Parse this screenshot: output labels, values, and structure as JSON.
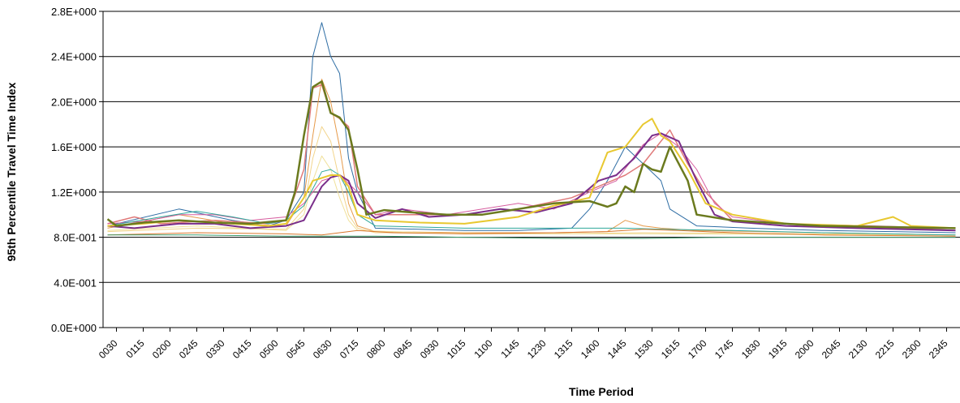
{
  "chart_data": {
    "type": "line",
    "xlabel": "Time Period",
    "ylabel": "95th Percentile Travel Time Index",
    "ylim": [
      0,
      2.8
    ],
    "yticks": [
      0,
      0.4,
      0.8,
      1.2,
      1.6,
      2.0,
      2.4,
      2.8
    ],
    "ytick_labels": [
      "0.0E+000",
      "4.0E-001",
      "8.0E-001",
      "1.2E+000",
      "1.6E+000",
      "2.0E+000",
      "2.4E+000",
      "2.8E+000"
    ],
    "xtick_labels": [
      "0030",
      "0115",
      "0200",
      "0245",
      "0330",
      "0415",
      "0500",
      "0545",
      "0630",
      "0715",
      "0800",
      "0845",
      "0930",
      "1015",
      "1100",
      "1145",
      "1230",
      "1315",
      "1400",
      "1445",
      "1530",
      "1615",
      "1700",
      "1745",
      "1830",
      "1915",
      "2000",
      "2045",
      "2130",
      "2215",
      "2300",
      "2345"
    ],
    "grid": "horizontal",
    "legend": "none",
    "series": [
      {
        "color": "#2e6da4",
        "width": 1,
        "points": [
          [
            0,
            0.9
          ],
          [
            8,
            1.05
          ],
          [
            14,
            0.95
          ],
          [
            18,
            0.9
          ],
          [
            20,
            0.95
          ],
          [
            22,
            1.2
          ],
          [
            23,
            2.4
          ],
          [
            24,
            2.7
          ],
          [
            25,
            2.4
          ],
          [
            26,
            2.25
          ],
          [
            27,
            1.5
          ],
          [
            28,
            1.2
          ],
          [
            30,
            0.88
          ],
          [
            40,
            0.86
          ],
          [
            46,
            0.86
          ],
          [
            52,
            0.88
          ],
          [
            54,
            1.05
          ],
          [
            56,
            1.3
          ],
          [
            58,
            1.6
          ],
          [
            60,
            1.45
          ],
          [
            62,
            1.3
          ],
          [
            63,
            1.05
          ],
          [
            66,
            0.9
          ],
          [
            72,
            0.88
          ],
          [
            80,
            0.86
          ],
          [
            95,
            0.84
          ]
        ]
      },
      {
        "color": "#e69a4a",
        "width": 1,
        "points": [
          [
            0,
            0.88
          ],
          [
            8,
            1.0
          ],
          [
            14,
            0.92
          ],
          [
            20,
            0.9
          ],
          [
            22,
            1.15
          ],
          [
            23,
            1.7
          ],
          [
            24,
            2.2
          ],
          [
            25,
            2.0
          ],
          [
            26,
            1.6
          ],
          [
            27,
            1.1
          ],
          [
            28,
            0.9
          ],
          [
            30,
            0.85
          ],
          [
            40,
            0.84
          ],
          [
            50,
            0.84
          ],
          [
            56,
            0.85
          ],
          [
            58,
            0.95
          ],
          [
            60,
            0.9
          ],
          [
            62,
            0.88
          ],
          [
            66,
            0.86
          ],
          [
            80,
            0.84
          ],
          [
            95,
            0.82
          ]
        ]
      },
      {
        "color": "#f2d48b",
        "width": 1,
        "points": [
          [
            0,
            0.85
          ],
          [
            10,
            0.88
          ],
          [
            20,
            0.87
          ],
          [
            22,
            1.05
          ],
          [
            23,
            1.5
          ],
          [
            24,
            1.78
          ],
          [
            25,
            1.65
          ],
          [
            26,
            1.3
          ],
          [
            27,
            1.0
          ],
          [
            28,
            0.88
          ],
          [
            30,
            0.84
          ],
          [
            50,
            0.83
          ],
          [
            60,
            0.84
          ],
          [
            80,
            0.83
          ],
          [
            95,
            0.82
          ]
        ]
      },
      {
        "color": "#f0e09a",
        "width": 1,
        "points": [
          [
            0,
            0.86
          ],
          [
            10,
            0.9
          ],
          [
            20,
            0.86
          ],
          [
            22,
            1.0
          ],
          [
            23,
            1.3
          ],
          [
            24,
            1.52
          ],
          [
            25,
            1.4
          ],
          [
            26,
            1.15
          ],
          [
            27,
            0.95
          ],
          [
            28,
            0.86
          ],
          [
            40,
            0.83
          ],
          [
            60,
            0.83
          ],
          [
            95,
            0.82
          ]
        ]
      },
      {
        "color": "#e07a7a",
        "width": 1.5,
        "points": [
          [
            0,
            0.92
          ],
          [
            3,
            0.98
          ],
          [
            6,
            0.92
          ],
          [
            12,
            0.95
          ],
          [
            18,
            0.92
          ],
          [
            20,
            0.95
          ],
          [
            22,
            1.4
          ],
          [
            23,
            2.12
          ],
          [
            24,
            2.15
          ],
          [
            25,
            1.9
          ],
          [
            26,
            1.85
          ],
          [
            27,
            1.78
          ],
          [
            28,
            1.25
          ],
          [
            30,
            1.0
          ],
          [
            35,
            1.0
          ],
          [
            42,
            1.0
          ],
          [
            46,
            1.05
          ],
          [
            52,
            1.15
          ],
          [
            55,
            1.25
          ],
          [
            58,
            1.35
          ],
          [
            60,
            1.45
          ],
          [
            63,
            1.75
          ],
          [
            65,
            1.45
          ],
          [
            67,
            1.2
          ],
          [
            70,
            0.95
          ],
          [
            80,
            0.9
          ],
          [
            90,
            0.88
          ],
          [
            95,
            0.86
          ]
        ]
      },
      {
        "color": "#d65c9e",
        "width": 1,
        "points": [
          [
            0,
            0.92
          ],
          [
            4,
            0.94
          ],
          [
            8,
            1.0
          ],
          [
            12,
            1.0
          ],
          [
            16,
            0.95
          ],
          [
            20,
            0.98
          ],
          [
            22,
            1.1
          ],
          [
            24,
            1.3
          ],
          [
            26,
            1.35
          ],
          [
            28,
            1.2
          ],
          [
            30,
            1.0
          ],
          [
            33,
            1.05
          ],
          [
            38,
            1.0
          ],
          [
            42,
            1.05
          ],
          [
            46,
            1.1
          ],
          [
            50,
            1.05
          ],
          [
            54,
            1.2
          ],
          [
            57,
            1.3
          ],
          [
            60,
            1.62
          ],
          [
            62,
            1.72
          ],
          [
            64,
            1.6
          ],
          [
            66,
            1.4
          ],
          [
            68,
            1.1
          ],
          [
            70,
            0.98
          ],
          [
            76,
            0.92
          ],
          [
            86,
            0.9
          ],
          [
            95,
            0.88
          ]
        ]
      },
      {
        "color": "#2fa89a",
        "width": 1,
        "points": [
          [
            0,
            0.9
          ],
          [
            6,
            0.98
          ],
          [
            10,
            1.03
          ],
          [
            14,
            0.98
          ],
          [
            18,
            0.92
          ],
          [
            20,
            0.95
          ],
          [
            22,
            1.08
          ],
          [
            24,
            1.38
          ],
          [
            25,
            1.4
          ],
          [
            26,
            1.35
          ],
          [
            27,
            1.2
          ],
          [
            28,
            1.0
          ],
          [
            30,
            0.9
          ],
          [
            40,
            0.88
          ],
          [
            50,
            0.88
          ],
          [
            58,
            0.88
          ],
          [
            62,
            0.87
          ],
          [
            70,
            0.86
          ],
          [
            80,
            0.84
          ],
          [
            95,
            0.82
          ]
        ]
      },
      {
        "color": "#7a2e8a",
        "width": 2,
        "points": [
          [
            0,
            0.9
          ],
          [
            3,
            0.88
          ],
          [
            8,
            0.92
          ],
          [
            12,
            0.92
          ],
          [
            16,
            0.88
          ],
          [
            20,
            0.9
          ],
          [
            22,
            0.95
          ],
          [
            23,
            1.1
          ],
          [
            24,
            1.25
          ],
          [
            25,
            1.33
          ],
          [
            26,
            1.35
          ],
          [
            27,
            1.3
          ],
          [
            28,
            1.1
          ],
          [
            30,
            0.97
          ],
          [
            33,
            1.05
          ],
          [
            36,
            0.98
          ],
          [
            40,
            1.0
          ],
          [
            44,
            1.05
          ],
          [
            48,
            1.02
          ],
          [
            52,
            1.1
          ],
          [
            55,
            1.3
          ],
          [
            57,
            1.35
          ],
          [
            59,
            1.5
          ],
          [
            61,
            1.7
          ],
          [
            62,
            1.72
          ],
          [
            64,
            1.65
          ],
          [
            66,
            1.3
          ],
          [
            68,
            1.0
          ],
          [
            70,
            0.94
          ],
          [
            76,
            0.9
          ],
          [
            84,
            0.88
          ],
          [
            95,
            0.86
          ]
        ]
      },
      {
        "color": "#e8c830",
        "width": 2,
        "points": [
          [
            0,
            0.9
          ],
          [
            4,
            0.92
          ],
          [
            8,
            0.95
          ],
          [
            14,
            0.92
          ],
          [
            18,
            0.9
          ],
          [
            20,
            0.92
          ],
          [
            22,
            1.15
          ],
          [
            23,
            1.3
          ],
          [
            25,
            1.35
          ],
          [
            26,
            1.35
          ],
          [
            27,
            1.25
          ],
          [
            28,
            1.0
          ],
          [
            30,
            0.95
          ],
          [
            35,
            0.93
          ],
          [
            40,
            0.92
          ],
          [
            46,
            0.98
          ],
          [
            50,
            1.08
          ],
          [
            54,
            1.15
          ],
          [
            56,
            1.55
          ],
          [
            58,
            1.6
          ],
          [
            60,
            1.8
          ],
          [
            61,
            1.85
          ],
          [
            62,
            1.7
          ],
          [
            63,
            1.65
          ],
          [
            65,
            1.4
          ],
          [
            67,
            1.1
          ],
          [
            70,
            1.0
          ],
          [
            76,
            0.92
          ],
          [
            84,
            0.9
          ],
          [
            88,
            0.98
          ],
          [
            90,
            0.9
          ],
          [
            95,
            0.88
          ]
        ]
      },
      {
        "color": "#6b7a1e",
        "width": 2.5,
        "points": [
          [
            0,
            0.96
          ],
          [
            1,
            0.9
          ],
          [
            4,
            0.93
          ],
          [
            8,
            0.95
          ],
          [
            12,
            0.93
          ],
          [
            16,
            0.92
          ],
          [
            20,
            0.95
          ],
          [
            21,
            1.2
          ],
          [
            22,
            1.7
          ],
          [
            23,
            2.13
          ],
          [
            24,
            2.18
          ],
          [
            25,
            1.9
          ],
          [
            26,
            1.86
          ],
          [
            27,
            1.75
          ],
          [
            28,
            1.4
          ],
          [
            29,
            1.0
          ],
          [
            31,
            1.04
          ],
          [
            34,
            1.02
          ],
          [
            38,
            1.0
          ],
          [
            42,
            1.0
          ],
          [
            46,
            1.05
          ],
          [
            50,
            1.1
          ],
          [
            54,
            1.12
          ],
          [
            56,
            1.07
          ],
          [
            57,
            1.1
          ],
          [
            58,
            1.25
          ],
          [
            59,
            1.2
          ],
          [
            60,
            1.45
          ],
          [
            61,
            1.4
          ],
          [
            62,
            1.38
          ],
          [
            63,
            1.6
          ],
          [
            65,
            1.3
          ],
          [
            66,
            1.0
          ],
          [
            70,
            0.95
          ],
          [
            80,
            0.9
          ],
          [
            95,
            0.88
          ]
        ]
      },
      {
        "color": "#d9782e",
        "width": 1,
        "points": [
          [
            0,
            0.82
          ],
          [
            10,
            0.84
          ],
          [
            20,
            0.83
          ],
          [
            24,
            0.82
          ],
          [
            28,
            0.86
          ],
          [
            32,
            0.84
          ],
          [
            40,
            0.83
          ],
          [
            50,
            0.84
          ],
          [
            56,
            0.85
          ],
          [
            60,
            0.87
          ],
          [
            64,
            0.86
          ],
          [
            70,
            0.84
          ],
          [
            80,
            0.82
          ],
          [
            95,
            0.81
          ]
        ]
      },
      {
        "color": "#3a9a6a",
        "width": 1,
        "points": [
          [
            0,
            0.82
          ],
          [
            10,
            0.82
          ],
          [
            20,
            0.81
          ],
          [
            30,
            0.81
          ],
          [
            40,
            0.8
          ],
          [
            50,
            0.79
          ],
          [
            60,
            0.79
          ],
          [
            70,
            0.8
          ],
          [
            80,
            0.8
          ],
          [
            95,
            0.8
          ]
        ]
      }
    ]
  }
}
